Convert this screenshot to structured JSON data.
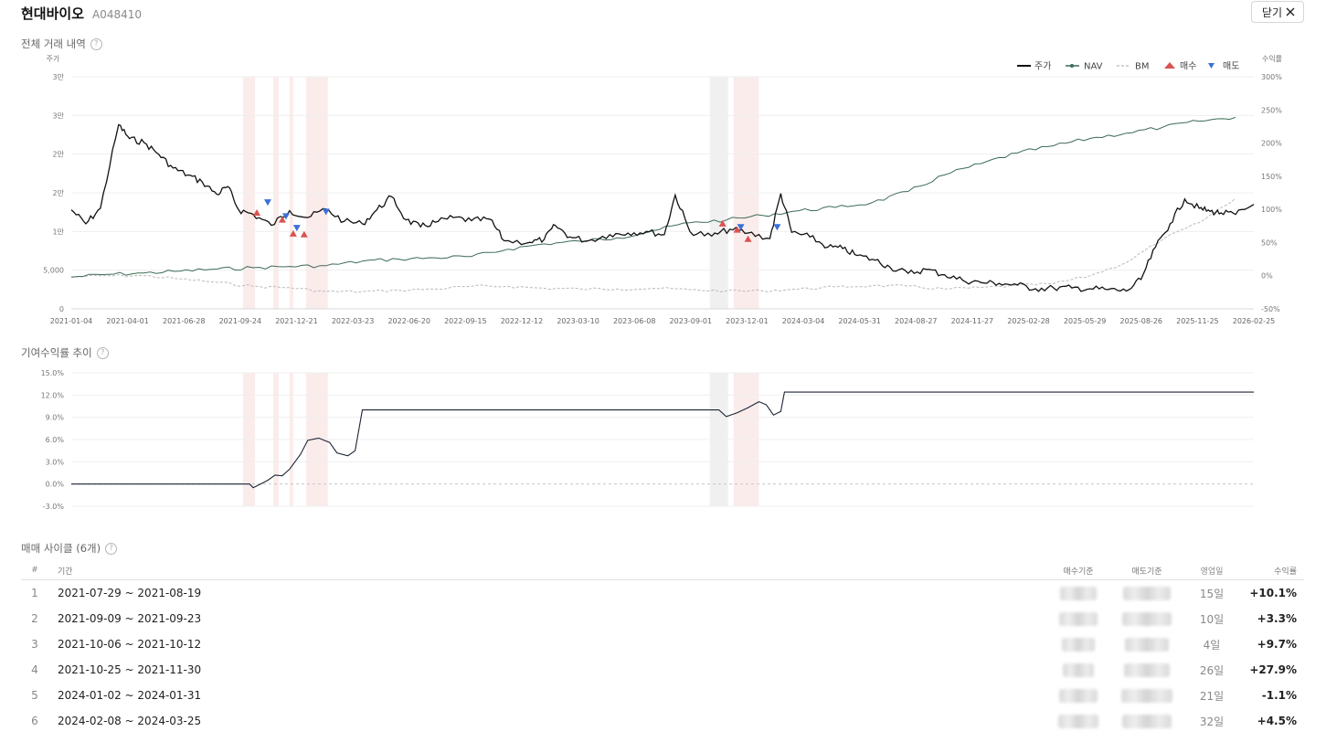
{
  "header": {
    "title": "현대바이오",
    "code": "A048410",
    "close_label": "닫기",
    "close_icon": "close-icon"
  },
  "sections": {
    "trade_history": "전체 거래 내역",
    "contribution": "기여수익률 추이",
    "cycles": "매매 사이클 (6개)"
  },
  "colors": {
    "price": "#111111",
    "nav": "#3d6b54",
    "bm": "#b9b9b9",
    "buy": "#d9534f",
    "sell": "#3b6fd8",
    "hold_band": "#fbecec",
    "loss_band": "#f0f0f0",
    "positive": "#c41a1a",
    "negative": "#1f3b66"
  },
  "chart_data": [
    {
      "type": "line",
      "left_axis_label": "주가",
      "right_axis_label": "수익률",
      "legend": [
        "주가",
        "NAV",
        "BM",
        "매수",
        "매도"
      ],
      "legend_position": "top-right",
      "y_left_ticks": [
        "3만",
        "3만",
        "2만",
        "2만",
        "1만",
        "5,000",
        "0"
      ],
      "y_left_range": [
        0,
        30000
      ],
      "y_right_ticks": [
        "300%",
        "250%",
        "200%",
        "150%",
        "100%",
        "50%",
        "0%",
        "-50%"
      ],
      "y_right_range": [
        -50,
        300
      ],
      "x_ticks": [
        "2021-01-04",
        "2021-04-01",
        "2021-06-28",
        "2021-09-24",
        "2021-12-21",
        "2022-03-23",
        "2022-06-20",
        "2022-09-15",
        "2022-12-12",
        "2023-03-10",
        "2023-06-08",
        "2023-09-01",
        "2023-12-01",
        "2024-03-04",
        "2024-05-31",
        "2024-08-27",
        "2024-11-27",
        "2025-02-28",
        "2025-05-29",
        "2025-08-26",
        "2025-11-25",
        "2026-02-25"
      ],
      "series": [
        {
          "name": "주가",
          "points": [
            [
              0,
              12800
            ],
            [
              0.4,
              11000
            ],
            [
              0.8,
              13000
            ],
            [
              1.3,
              23800
            ],
            [
              1.6,
              22000
            ],
            [
              2.0,
              21500
            ],
            [
              2.4,
              20000
            ],
            [
              2.8,
              18200
            ],
            [
              3.2,
              17300
            ],
            [
              3.6,
              16400
            ],
            [
              4.0,
              14800
            ],
            [
              4.3,
              15800
            ],
            [
              4.6,
              12800
            ],
            [
              5.0,
              12200
            ],
            [
              5.5,
              10800
            ],
            [
              6.0,
              12700
            ],
            [
              6.5,
              11800
            ],
            [
              7.0,
              12900
            ],
            [
              7.5,
              11300
            ],
            [
              8.0,
              11000
            ],
            [
              8.4,
              12800
            ],
            [
              8.8,
              14500
            ],
            [
              9.2,
              11500
            ],
            [
              9.6,
              10600
            ],
            [
              10.0,
              11200
            ],
            [
              10.5,
              11800
            ],
            [
              11.0,
              11400
            ],
            [
              11.5,
              11600
            ],
            [
              11.9,
              8800
            ],
            [
              12.6,
              8600
            ],
            [
              13.0,
              9000
            ],
            [
              13.3,
              10800
            ],
            [
              13.7,
              9300
            ],
            [
              14.2,
              8800
            ],
            [
              14.8,
              9600
            ],
            [
              15.3,
              9800
            ],
            [
              15.8,
              10000
            ],
            [
              16.3,
              9600
            ],
            [
              16.6,
              14700
            ],
            [
              17.0,
              10000
            ],
            [
              17.6,
              9400
            ],
            [
              18.1,
              10300
            ],
            [
              18.6,
              9800
            ],
            [
              19.2,
              9100
            ],
            [
              19.5,
              14900
            ],
            [
              19.8,
              9900
            ],
            [
              20.3,
              9300
            ],
            [
              20.8,
              8000
            ],
            [
              21.2,
              7800
            ],
            [
              21.6,
              6900
            ],
            [
              22.1,
              6300
            ],
            [
              22.5,
              5400
            ],
            [
              23.0,
              4600
            ],
            [
              23.5,
              5100
            ],
            [
              24.0,
              4400
            ],
            [
              24.5,
              3700
            ],
            [
              25.0,
              3400
            ],
            [
              25.5,
              3300
            ],
            [
              26.0,
              3100
            ],
            [
              26.5,
              2600
            ],
            [
              27.0,
              2700
            ],
            [
              27.5,
              2700
            ],
            [
              28.0,
              2600
            ],
            [
              28.5,
              2500
            ],
            [
              29.0,
              2300
            ],
            [
              29.4,
              3800
            ],
            [
              29.8,
              8000
            ],
            [
              30.2,
              11000
            ],
            [
              30.6,
              14200
            ],
            [
              31.0,
              13000
            ],
            [
              31.3,
              12600
            ],
            [
              31.6,
              12400
            ],
            [
              32.0,
              12200
            ],
            [
              32.5,
              13500
            ]
          ]
        },
        {
          "name": "NAV",
          "points": [
            [
              0,
              -2
            ],
            [
              1,
              2
            ],
            [
              2,
              4
            ],
            [
              3,
              7
            ],
            [
              4,
              10
            ],
            [
              5,
              12
            ],
            [
              6,
              14
            ],
            [
              7,
              15
            ],
            [
              8,
              22
            ],
            [
              9,
              25
            ],
            [
              10,
              27
            ],
            [
              11,
              29
            ],
            [
              12,
              40
            ],
            [
              13,
              48
            ],
            [
              14,
              52
            ],
            [
              15,
              57
            ],
            [
              16,
              68
            ],
            [
              17,
              80
            ],
            [
              18,
              84
            ],
            [
              19,
              91
            ],
            [
              20,
              98
            ],
            [
              21,
              103
            ],
            [
              22,
              110
            ],
            [
              23,
              127
            ],
            [
              24,
              152
            ],
            [
              25,
              169
            ],
            [
              26,
              185
            ],
            [
              27,
              196
            ],
            [
              28,
              207
            ],
            [
              29,
              215
            ],
            [
              30,
              224
            ],
            [
              31,
              233
            ],
            [
              32,
              239
            ]
          ]
        },
        {
          "name": "BM",
          "points": [
            [
              0,
              -2
            ],
            [
              1,
              0
            ],
            [
              2,
              0
            ],
            [
              3,
              -5
            ],
            [
              4,
              -10
            ],
            [
              5,
              -16
            ],
            [
              6,
              -18
            ],
            [
              7,
              -24
            ],
            [
              8,
              -24
            ],
            [
              9,
              -22
            ],
            [
              10,
              -20
            ],
            [
              11,
              -16
            ],
            [
              12,
              -16
            ],
            [
              13,
              -19
            ],
            [
              14,
              -20
            ],
            [
              15,
              -20
            ],
            [
              16,
              -19
            ],
            [
              17,
              -21
            ],
            [
              18,
              -23
            ],
            [
              19,
              -23
            ],
            [
              20,
              -20
            ],
            [
              21,
              -17
            ],
            [
              22,
              -15
            ],
            [
              23,
              -16
            ],
            [
              24,
              -20
            ],
            [
              25,
              -18
            ],
            [
              26,
              -15
            ],
            [
              27,
              -12
            ],
            [
              28,
              0
            ],
            [
              29,
              20
            ],
            [
              30,
              55
            ],
            [
              31,
              80
            ],
            [
              32,
              117
            ]
          ]
        },
        {
          "name": "매수",
          "points": [
            [
              5.1,
              12400
            ],
            [
              5.8,
              11500
            ],
            [
              6.1,
              9700
            ],
            [
              6.4,
              9600
            ],
            [
              17.9,
              11000
            ],
            [
              18.3,
              10200
            ],
            [
              18.6,
              9000
            ]
          ]
        },
        {
          "name": "매도",
          "points": [
            [
              5.4,
              13800
            ],
            [
              5.9,
              12000
            ],
            [
              6.2,
              10500
            ],
            [
              7.0,
              12600
            ],
            [
              18.4,
              10600
            ],
            [
              19.4,
              10600
            ]
          ]
        }
      ]
    },
    {
      "type": "line",
      "y_ticks": [
        "15.0%",
        "12.0%",
        "9.0%",
        "6.0%",
        "3.0%",
        "0.0%",
        "-3.0%"
      ],
      "y_range": [
        -3,
        15
      ],
      "series": [
        {
          "name": "기여수익률",
          "points": [
            [
              0,
              0
            ],
            [
              4.9,
              0
            ],
            [
              5.0,
              -0.5
            ],
            [
              5.2,
              0
            ],
            [
              5.4,
              0.5
            ],
            [
              5.6,
              1.2
            ],
            [
              5.8,
              1.1
            ],
            [
              6.0,
              2.0
            ],
            [
              6.3,
              4.0
            ],
            [
              6.5,
              5.9
            ],
            [
              6.8,
              6.2
            ],
            [
              7.1,
              5.6
            ],
            [
              7.3,
              4.2
            ],
            [
              7.6,
              3.8
            ],
            [
              7.8,
              4.5
            ],
            [
              8.0,
              10.0
            ],
            [
              17.8,
              10.0
            ],
            [
              18.0,
              9.1
            ],
            [
              18.3,
              9.6
            ],
            [
              18.6,
              10.3
            ],
            [
              18.9,
              11.1
            ],
            [
              19.1,
              10.7
            ],
            [
              19.3,
              9.3
            ],
            [
              19.5,
              9.8
            ],
            [
              19.6,
              12.4
            ],
            [
              32.5,
              12.4
            ]
          ]
        }
      ]
    }
  ],
  "table": {
    "headers": [
      "#",
      "기간",
      "매수기준",
      "매도기준",
      "영업일",
      "수익률"
    ],
    "rows": [
      {
        "idx": "1",
        "period": "2021-07-29 ~ 2021-08-19",
        "days": "15일",
        "ret": "+10.1%"
      },
      {
        "idx": "2",
        "period": "2021-09-09 ~ 2021-09-23",
        "days": "10일",
        "ret": "+3.3%"
      },
      {
        "idx": "3",
        "period": "2021-10-06 ~ 2021-10-12",
        "days": "4일",
        "ret": "+9.7%"
      },
      {
        "idx": "4",
        "period": "2021-10-25 ~ 2021-11-30",
        "days": "26일",
        "ret": "+27.9%"
      },
      {
        "idx": "5",
        "period": "2024-01-02 ~ 2024-01-31",
        "days": "21일",
        "ret": "-1.1%"
      },
      {
        "idx": "6",
        "period": "2024-02-08 ~ 2024-03-25",
        "days": "32일",
        "ret": "+4.5%"
      }
    ]
  }
}
